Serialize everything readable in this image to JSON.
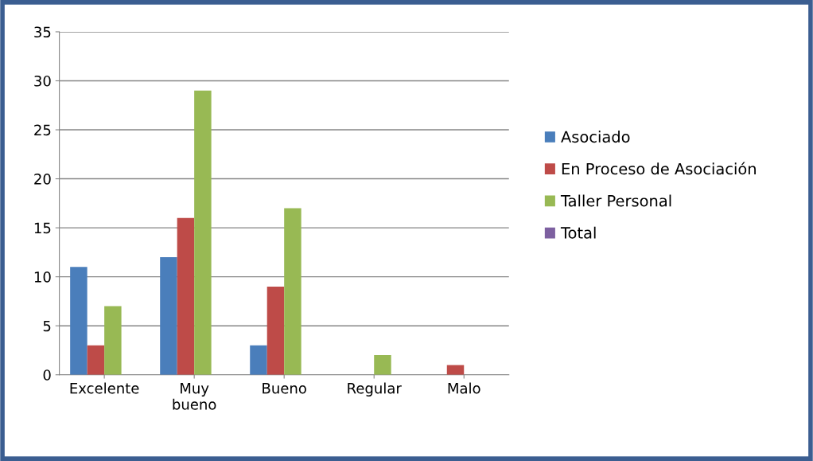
{
  "chart_data": {
    "type": "bar",
    "categories": [
      "Excelente",
      "Muy\nbueno",
      "Bueno",
      "Regular",
      "Malo"
    ],
    "series": [
      {
        "name": "Asociado",
        "color": "#4a7ebb",
        "values": [
          11,
          12,
          3,
          0,
          0
        ]
      },
      {
        "name": "En Proceso de Asociación",
        "color": "#be4b48",
        "values": [
          3,
          16,
          9,
          0,
          1
        ]
      },
      {
        "name": "Taller Personal",
        "color": "#98b954",
        "values": [
          7,
          29,
          17,
          2,
          0
        ]
      },
      {
        "name": "Total",
        "color": "#7d60a0",
        "values": [
          null,
          null,
          null,
          null,
          null
        ]
      }
    ],
    "ylim": [
      0,
      35
    ],
    "yticks": [
      0,
      5,
      10,
      15,
      20,
      25,
      30,
      35
    ],
    "grid": "y",
    "legend": "right"
  }
}
